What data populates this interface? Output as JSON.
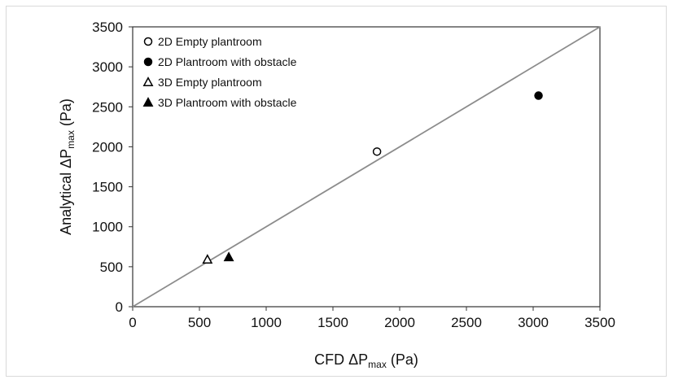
{
  "chart_data": {
    "type": "scatter",
    "xlabel": {
      "prefix": "CFD ΔP",
      "sub": "max",
      "suffix": " (Pa)"
    },
    "ylabel": {
      "prefix": "Analytical ΔP",
      "sub": "max",
      "suffix": " (Pa)"
    },
    "xlim": [
      0,
      3500
    ],
    "ylim": [
      0,
      3500
    ],
    "xticks": [
      "0",
      "500",
      "1000",
      "1500",
      "2000",
      "2500",
      "3000",
      "3500"
    ],
    "yticks": [
      "0",
      "500",
      "1000",
      "1500",
      "2000",
      "2500",
      "3000",
      "3500"
    ],
    "grid": false,
    "legend_position": "top-left",
    "reference_line": {
      "from": [
        0,
        0
      ],
      "to": [
        3500,
        3500
      ],
      "color": "#8c8c8c"
    },
    "series": [
      {
        "name": "2D Empty plantroom",
        "marker": "circle-open",
        "points": [
          [
            1830,
            1940
          ]
        ]
      },
      {
        "name": "2D Plantroom with obstacle",
        "marker": "circle-filled",
        "points": [
          [
            3040,
            2640
          ]
        ]
      },
      {
        "name": "3D Empty plantroom",
        "marker": "triangle-open",
        "points": [
          [
            560,
            590
          ]
        ]
      },
      {
        "name": "3D Plantroom with obstacle",
        "marker": "triangle-filled",
        "points": [
          [
            720,
            620
          ]
        ]
      }
    ]
  }
}
